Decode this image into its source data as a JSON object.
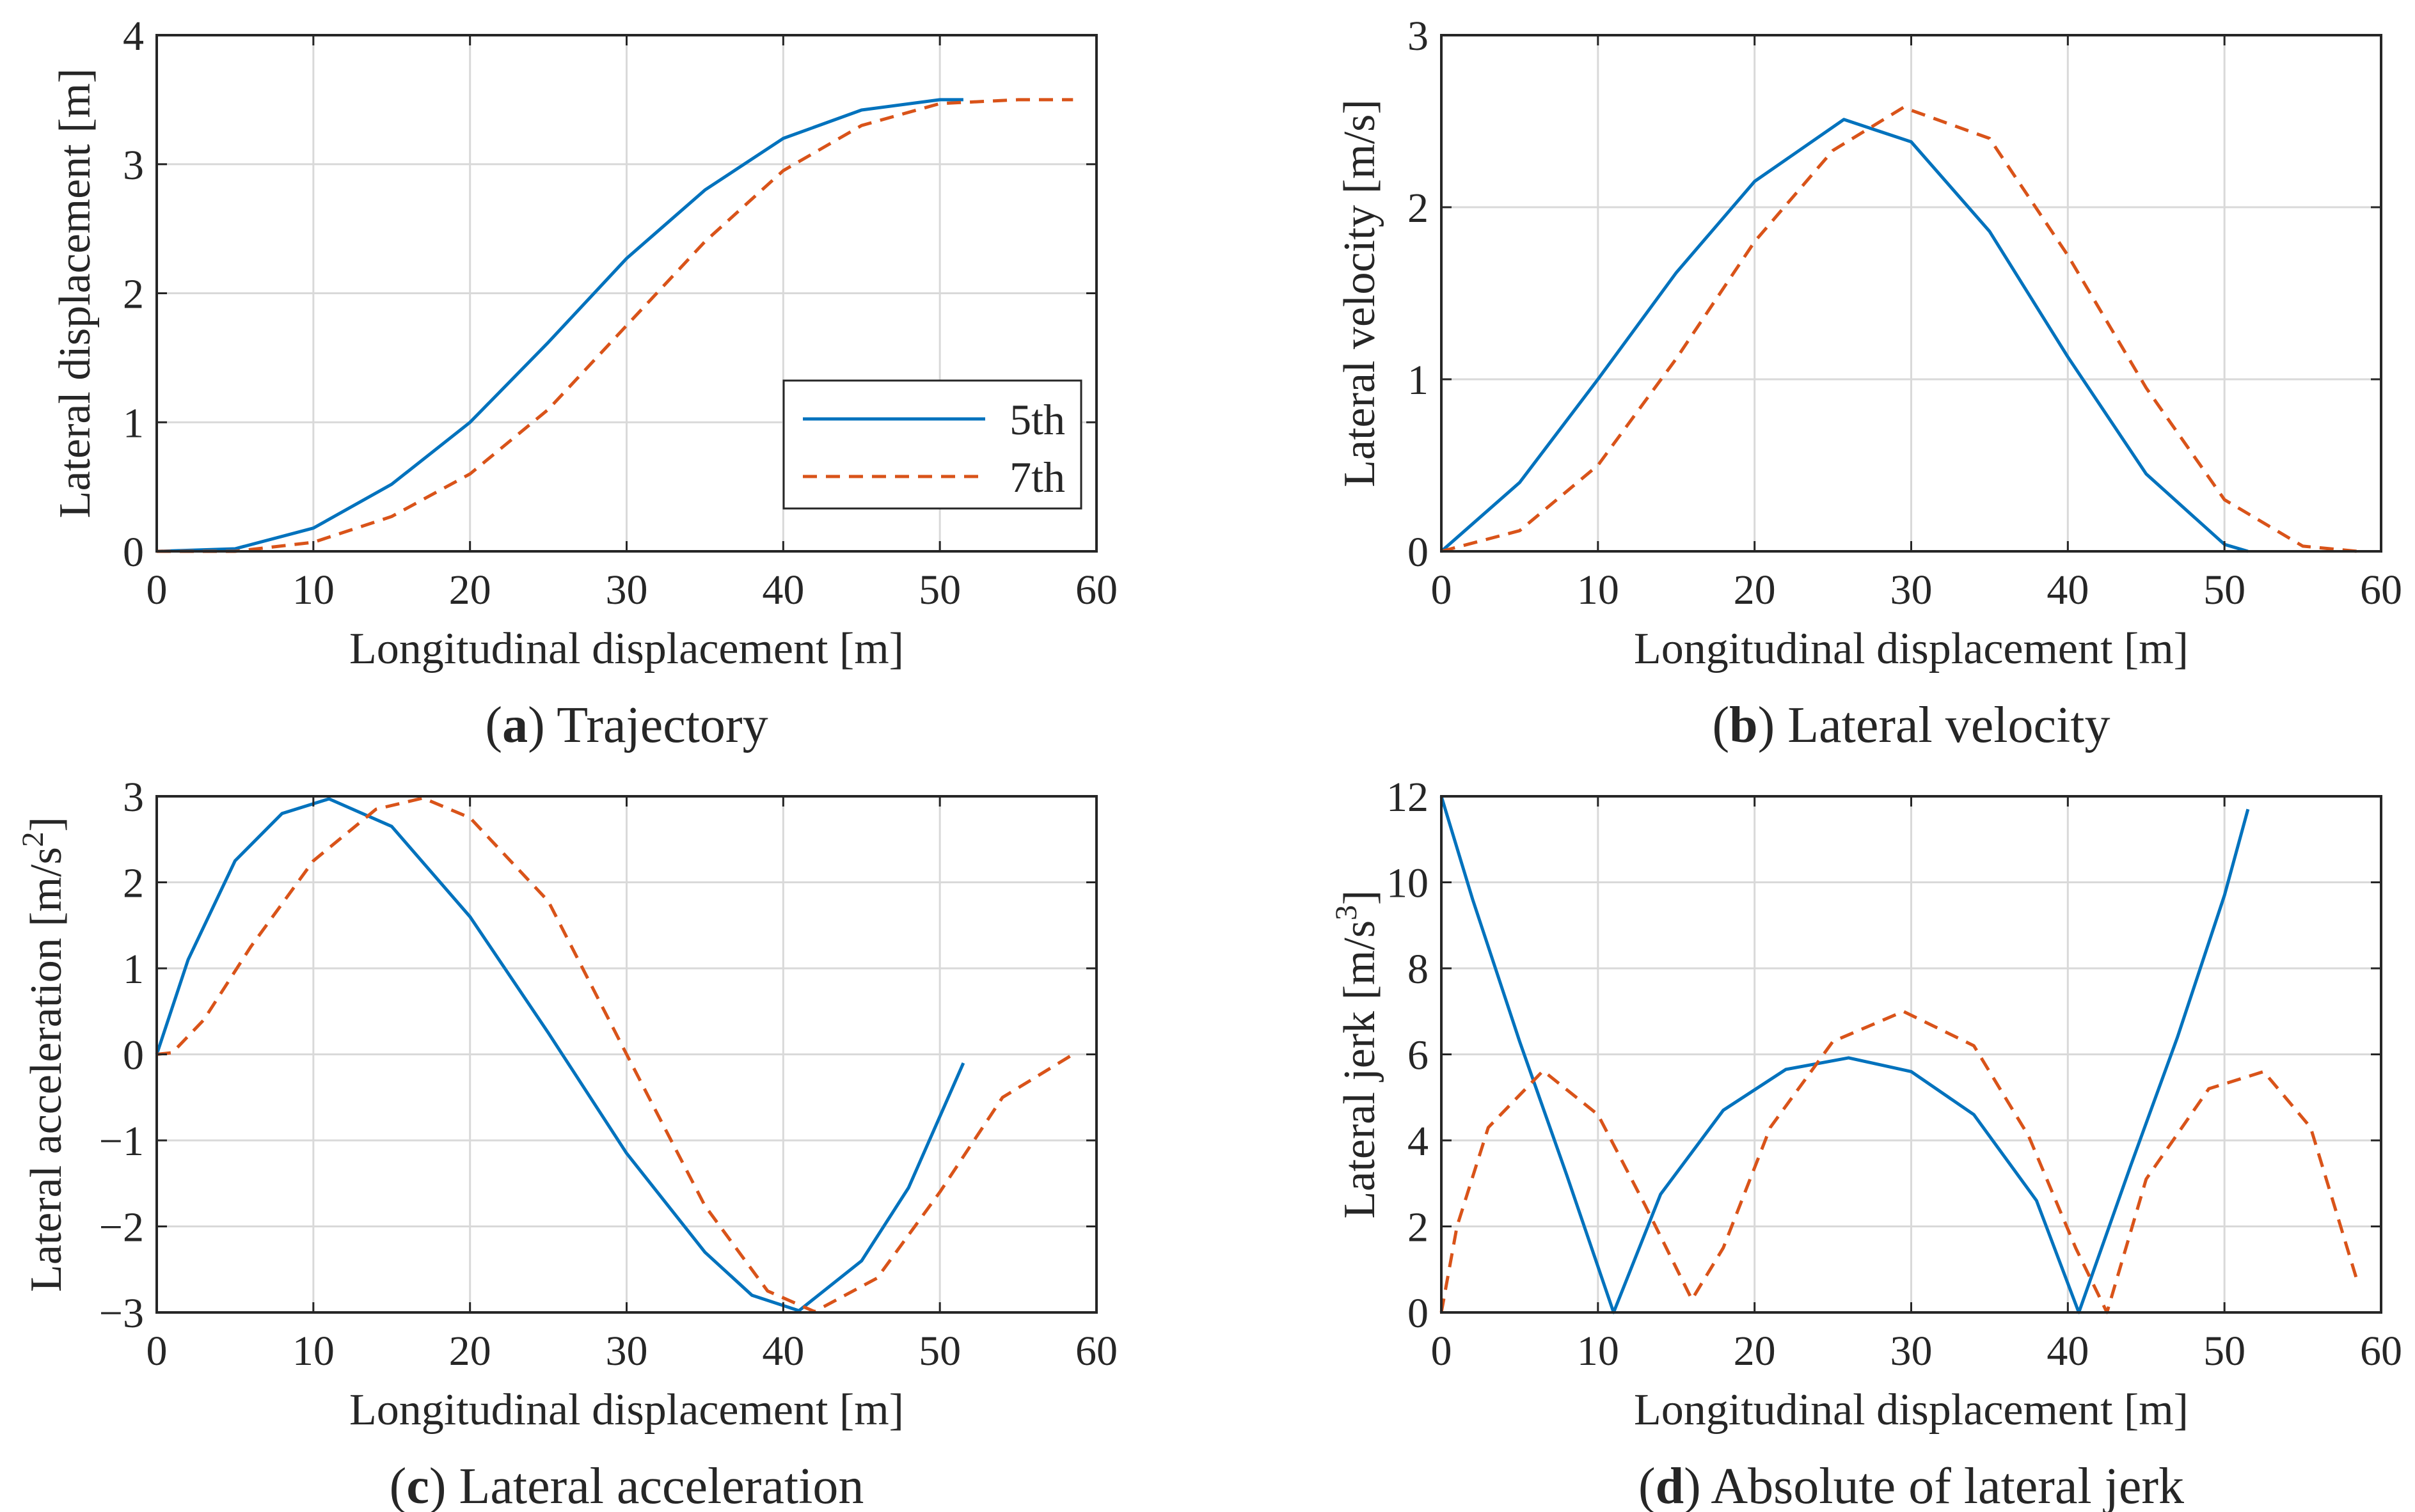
{
  "colors": {
    "series_5th": "#0072BD",
    "series_7th": "#D95319",
    "grid": "#d9d9d9",
    "axis": "#262626"
  },
  "panels": [
    {
      "letter": "a",
      "caption_rest": ") Trajectory",
      "xlabel": "Longitudinal displacement [m]",
      "ylabel": "Lateral displacement [m]"
    },
    {
      "letter": "b",
      "caption_rest": ") Lateral velocity",
      "xlabel": "Longitudinal displacement [m]",
      "ylabel": "Lateral velocity [m/s]"
    },
    {
      "letter": "c",
      "caption_rest": ") Lateral acceleration",
      "xlabel": "Longitudinal displacement [m]",
      "ylabel": "Lateral acceleration  [m/s",
      "ylabel_sup": "2",
      "ylabel_end": "]"
    },
    {
      "letter": "d",
      "caption_rest": ") Absolute of lateral jerk",
      "xlabel": "Longitudinal displacement [m]",
      "ylabel": "Lateral jerk [m/s",
      "ylabel_sup": "3",
      "ylabel_end": "]"
    }
  ],
  "chart_data": [
    {
      "type": "line",
      "title": "(a) Trajectory",
      "xlabel": "Longitudinal displacement [m]",
      "ylabel": "Lateral displacement [m]",
      "xlim": [
        0,
        60
      ],
      "ylim": [
        0,
        4
      ],
      "xticks": [
        0,
        10,
        20,
        30,
        40,
        50,
        60
      ],
      "yticks": [
        0,
        1,
        2,
        3,
        4
      ],
      "grid": true,
      "legend": "right",
      "series": [
        {
          "name": "5th",
          "style": "solid",
          "x": [
            0,
            5,
            10,
            15,
            20,
            25,
            30,
            35,
            40,
            45,
            50,
            51.5
          ],
          "y": [
            0,
            0.02,
            0.18,
            0.52,
            1.0,
            1.62,
            2.27,
            2.8,
            3.2,
            3.42,
            3.5,
            3.5
          ]
        },
        {
          "name": "7th",
          "style": "dashed",
          "x": [
            0,
            5,
            10,
            15,
            20,
            25,
            30,
            35,
            40,
            45,
            50,
            55,
            58.5
          ],
          "y": [
            0,
            0.0,
            0.07,
            0.27,
            0.6,
            1.1,
            1.75,
            2.4,
            2.95,
            3.3,
            3.47,
            3.5,
            3.5
          ]
        }
      ]
    },
    {
      "type": "line",
      "title": "(b) Lateral velocity",
      "xlabel": "Longitudinal displacement [m]",
      "ylabel": "Lateral velocity [m/s]",
      "xlim": [
        0,
        60
      ],
      "ylim": [
        0,
        3
      ],
      "xticks": [
        0,
        10,
        20,
        30,
        40,
        50,
        60
      ],
      "yticks": [
        0,
        1,
        2,
        3
      ],
      "grid": true,
      "series": [
        {
          "name": "5th",
          "style": "solid",
          "x": [
            0,
            5,
            10,
            15,
            20,
            25.7,
            30,
            35,
            40,
            45,
            50,
            51.5
          ],
          "y": [
            0,
            0.4,
            1.0,
            1.62,
            2.15,
            2.51,
            2.38,
            1.86,
            1.13,
            0.45,
            0.04,
            0.0
          ]
        },
        {
          "name": "7th",
          "style": "dashed",
          "x": [
            0,
            5,
            10,
            15,
            20,
            25,
            29.5,
            35,
            40,
            45,
            50,
            55,
            58.5
          ],
          "y": [
            0,
            0.12,
            0.5,
            1.12,
            1.8,
            2.33,
            2.58,
            2.4,
            1.72,
            0.95,
            0.3,
            0.03,
            0.0
          ]
        }
      ]
    },
    {
      "type": "line",
      "title": "(c) Lateral acceleration",
      "xlabel": "Longitudinal displacement [m]",
      "ylabel": "Lateral acceleration  [m/s2]",
      "xlim": [
        0,
        60
      ],
      "ylim": [
        -3,
        3
      ],
      "xticks": [
        0,
        10,
        20,
        30,
        40,
        50,
        60
      ],
      "yticks": [
        -3,
        -2,
        -1,
        0,
        1,
        2,
        3
      ],
      "grid": true,
      "series": [
        {
          "name": "5th",
          "style": "solid",
          "x": [
            0,
            2,
            5,
            8,
            11,
            15,
            20,
            25,
            30,
            35,
            38,
            41,
            45,
            48,
            51.5
          ],
          "y": [
            0,
            1.1,
            2.25,
            2.8,
            2.97,
            2.65,
            1.6,
            0.25,
            -1.15,
            -2.3,
            -2.8,
            -2.98,
            -2.4,
            -1.55,
            -0.1
          ]
        },
        {
          "name": "7th",
          "style": "dashed",
          "x": [
            0,
            1,
            3,
            6,
            10,
            14,
            17,
            20,
            25,
            30,
            35,
            39,
            42,
            46,
            50,
            54,
            58.5
          ],
          "y": [
            0,
            0.02,
            0.4,
            1.25,
            2.25,
            2.85,
            2.98,
            2.75,
            1.78,
            0.0,
            -1.76,
            -2.75,
            -2.99,
            -2.6,
            -1.6,
            -0.5,
            0.0
          ]
        }
      ]
    },
    {
      "type": "line",
      "title": "(d) Absolute of lateral jerk",
      "xlabel": "Longitudinal displacement [m]",
      "ylabel": "Lateral jerk [m/s3]",
      "xlim": [
        0,
        60
      ],
      "ylim": [
        0,
        12
      ],
      "xticks": [
        0,
        10,
        20,
        30,
        40,
        50,
        60
      ],
      "yticks": [
        0,
        2,
        4,
        6,
        8,
        10,
        12
      ],
      "grid": true,
      "series": [
        {
          "name": "5th",
          "style": "solid",
          "x": [
            0,
            2,
            5,
            8,
            11,
            14,
            18,
            22,
            26,
            30,
            34,
            38,
            40.7,
            44,
            47,
            50,
            51.5
          ],
          "y": [
            12,
            9.6,
            6.3,
            3.2,
            0.0,
            2.75,
            4.7,
            5.65,
            5.92,
            5.6,
            4.6,
            2.6,
            0.0,
            3.4,
            6.4,
            9.7,
            11.7
          ]
        },
        {
          "name": "7th",
          "style": "dashed",
          "x": [
            0,
            1,
            3,
            6.5,
            10,
            13,
            16,
            18,
            21,
            25,
            29.5,
            34,
            37.5,
            40.5,
            42.5,
            45,
            49,
            52.5,
            55.5,
            58.5
          ],
          "y": [
            0,
            2.0,
            4.3,
            5.62,
            4.6,
            2.5,
            0.3,
            1.5,
            4.3,
            6.3,
            7.0,
            6.2,
            4.1,
            1.5,
            0.0,
            3.1,
            5.2,
            5.6,
            4.3,
            0.7
          ]
        }
      ]
    }
  ]
}
